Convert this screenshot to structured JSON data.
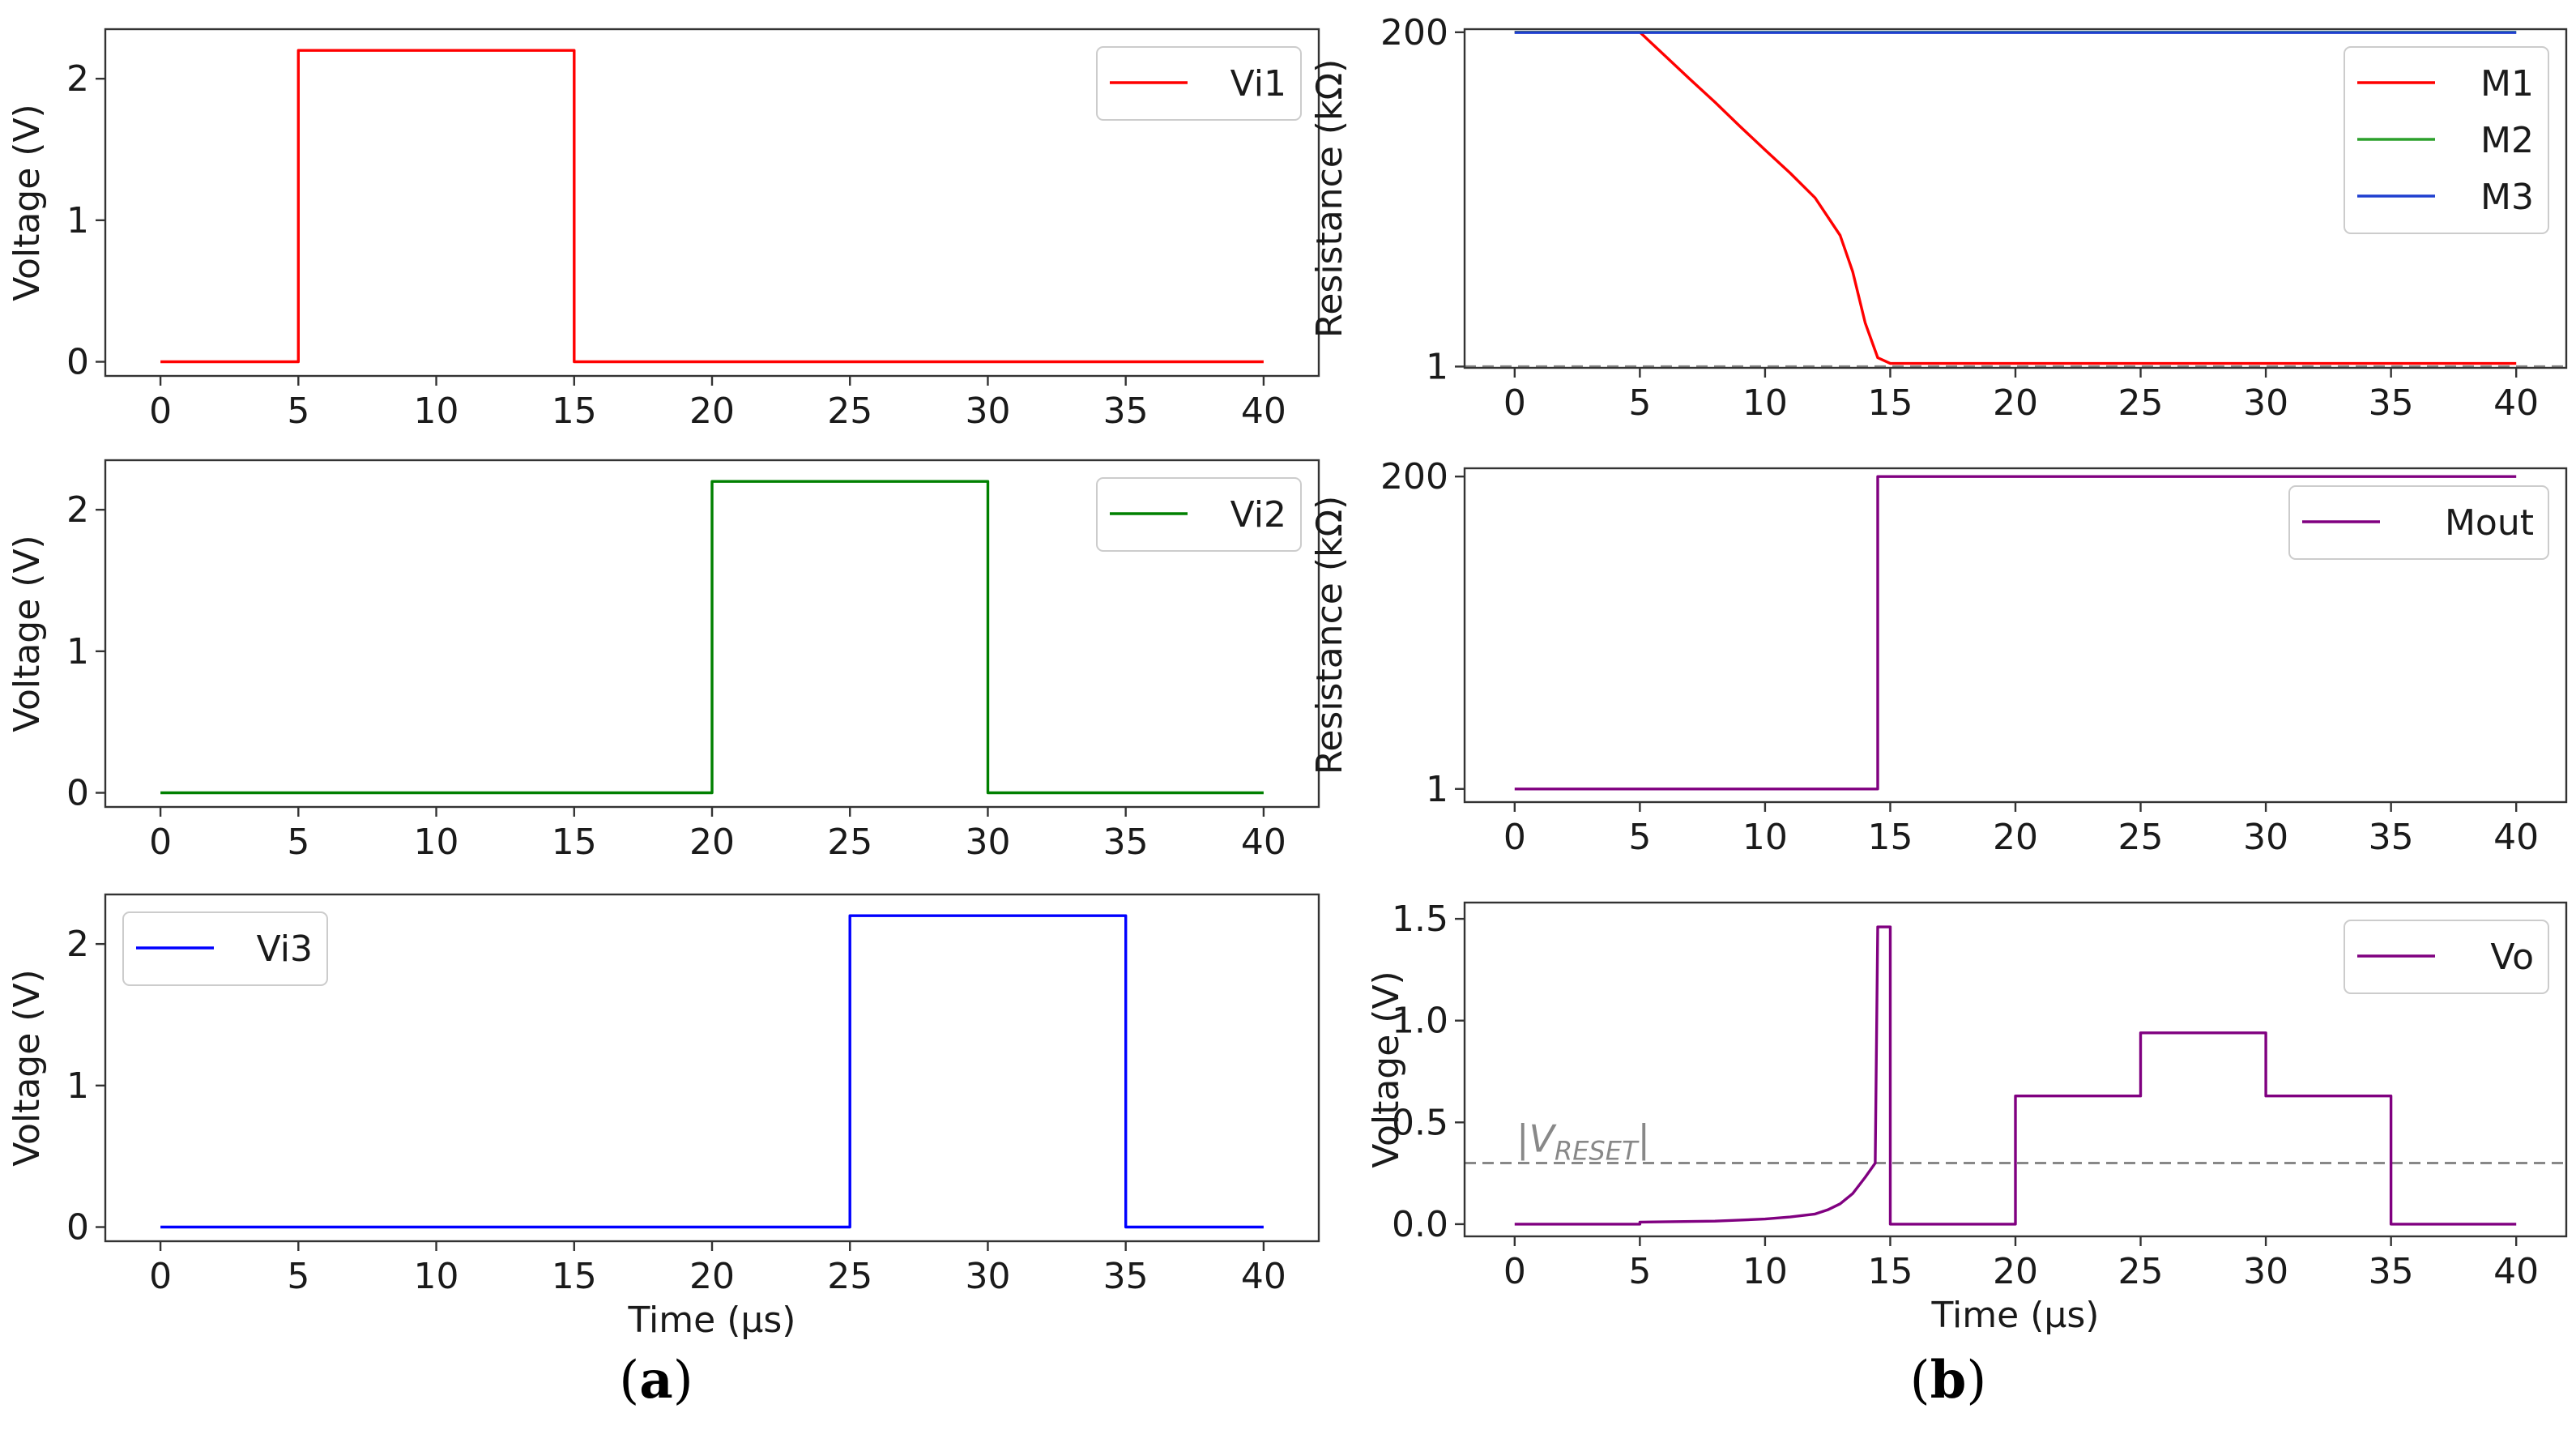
{
  "chart_data": [
    {
      "type": "line",
      "panel": "a1",
      "ylabel": "Voltage (V)",
      "xlabel": "",
      "xlim": [
        -2,
        42
      ],
      "ylim": [
        -0.1,
        2.35
      ],
      "xticks": [
        0,
        5,
        10,
        15,
        20,
        25,
        30,
        35,
        40
      ],
      "yticks": [
        0,
        1,
        2
      ],
      "legend_loc": "top-right",
      "series": [
        {
          "name": "Vi1",
          "color": "#ff0000",
          "x": [
            0,
            5,
            5,
            15,
            15,
            40
          ],
          "y": [
            0,
            0,
            2.2,
            2.2,
            0,
            0
          ]
        }
      ]
    },
    {
      "type": "line",
      "panel": "a2",
      "ylabel": "Voltage (V)",
      "xlabel": "",
      "xlim": [
        -2,
        42
      ],
      "ylim": [
        -0.1,
        2.35
      ],
      "xticks": [
        0,
        5,
        10,
        15,
        20,
        25,
        30,
        35,
        40
      ],
      "yticks": [
        0,
        1,
        2
      ],
      "legend_loc": "top-right",
      "series": [
        {
          "name": "Vi2",
          "color": "#008000",
          "x": [
            0,
            20,
            20,
            30,
            30,
            40
          ],
          "y": [
            0,
            0,
            2.2,
            2.2,
            0,
            0
          ]
        }
      ]
    },
    {
      "type": "line",
      "panel": "a3",
      "ylabel": "Voltage (V)",
      "xlabel": "Time (µs)",
      "xlim": [
        -2,
        42
      ],
      "ylim": [
        -0.1,
        2.35
      ],
      "xticks": [
        0,
        5,
        10,
        15,
        20,
        25,
        30,
        35,
        40
      ],
      "yticks": [
        0,
        1,
        2
      ],
      "legend_loc": "top-left",
      "series": [
        {
          "name": "Vi3",
          "color": "#0000ff",
          "x": [
            0,
            25,
            25,
            35,
            35,
            40
          ],
          "y": [
            0,
            0,
            2.2,
            2.2,
            0,
            0
          ]
        }
      ]
    },
    {
      "type": "line",
      "panel": "b1",
      "yscale": "log",
      "ylabel": "Resistance (kΩ)",
      "xlabel": "",
      "xlim": [
        -2,
        42
      ],
      "ylim": [
        0.98,
        210
      ],
      "xticks": [
        0,
        5,
        10,
        15,
        20,
        25,
        30,
        35,
        40
      ],
      "yticks": [
        1,
        200
      ],
      "legend_loc": "top-right",
      "hline": 1.0,
      "series": [
        {
          "name": "M1",
          "color": "#ff0000",
          "x": [
            0,
            5,
            6,
            7,
            8,
            9,
            10,
            11,
            12,
            13,
            13.5,
            14,
            14.5,
            15,
            40
          ],
          "y": [
            200,
            200,
            138,
            95,
            66,
            45,
            31,
            21.5,
            14.5,
            8,
            4.5,
            2,
            1.15,
            1.05,
            1.05
          ]
        },
        {
          "name": "M2",
          "color": "#2ca02c",
          "x": [
            0,
            40
          ],
          "y": [
            200,
            200
          ]
        },
        {
          "name": "M3",
          "color": "#1f3fd0",
          "x": [
            0,
            40
          ],
          "y": [
            199,
            199
          ]
        }
      ]
    },
    {
      "type": "line",
      "panel": "b2",
      "yscale": "log",
      "ylabel": "Resistance (kΩ)",
      "xlabel": "",
      "xlim": [
        -2,
        42
      ],
      "ylim": [
        0.8,
        230
      ],
      "xticks": [
        0,
        5,
        10,
        15,
        20,
        25,
        30,
        35,
        40
      ],
      "yticks": [
        1,
        200
      ],
      "legend_loc": "top-right",
      "series": [
        {
          "name": "Mout",
          "color": "#800080",
          "x": [
            0,
            14.5,
            14.5,
            40
          ],
          "y": [
            1,
            1,
            200,
            200
          ]
        }
      ]
    },
    {
      "type": "line",
      "panel": "b3",
      "ylabel": "Voltage (V)",
      "xlabel": "Time (µs)",
      "xlim": [
        -2,
        42
      ],
      "ylim": [
        -0.06,
        1.58
      ],
      "xticks": [
        0,
        5,
        10,
        15,
        20,
        25,
        30,
        35,
        40
      ],
      "yticks": [
        0.0,
        0.5,
        1.0,
        1.5
      ],
      "ytick_labels": [
        "0.0",
        "0.5",
        "1.0",
        "1.5"
      ],
      "legend_loc": "top-right",
      "hline": 0.3,
      "hline_label": "|V",
      "hline_label_sub": "RESET",
      "hline_label_end": "|",
      "series": [
        {
          "name": "Vo",
          "color": "#800080",
          "x": [
            0,
            5,
            5,
            8,
            10,
            11,
            12,
            12.5,
            13,
            13.5,
            14,
            14.4,
            14.5,
            14.5,
            15,
            15,
            20,
            20,
            25,
            25,
            30,
            30,
            35,
            35,
            40
          ],
          "y": [
            0,
            0,
            0.01,
            0.015,
            0.025,
            0.035,
            0.05,
            0.07,
            0.1,
            0.15,
            0.23,
            0.3,
            1.46,
            1.46,
            1.46,
            0,
            0,
            0.63,
            0.63,
            0.94,
            0.94,
            0.63,
            0.63,
            0,
            0
          ]
        }
      ]
    }
  ],
  "panel_labels": {
    "a": {
      "open": "(",
      "letter": "a",
      "close": ")"
    },
    "b": {
      "open": "(",
      "letter": "b",
      "close": ")"
    }
  }
}
